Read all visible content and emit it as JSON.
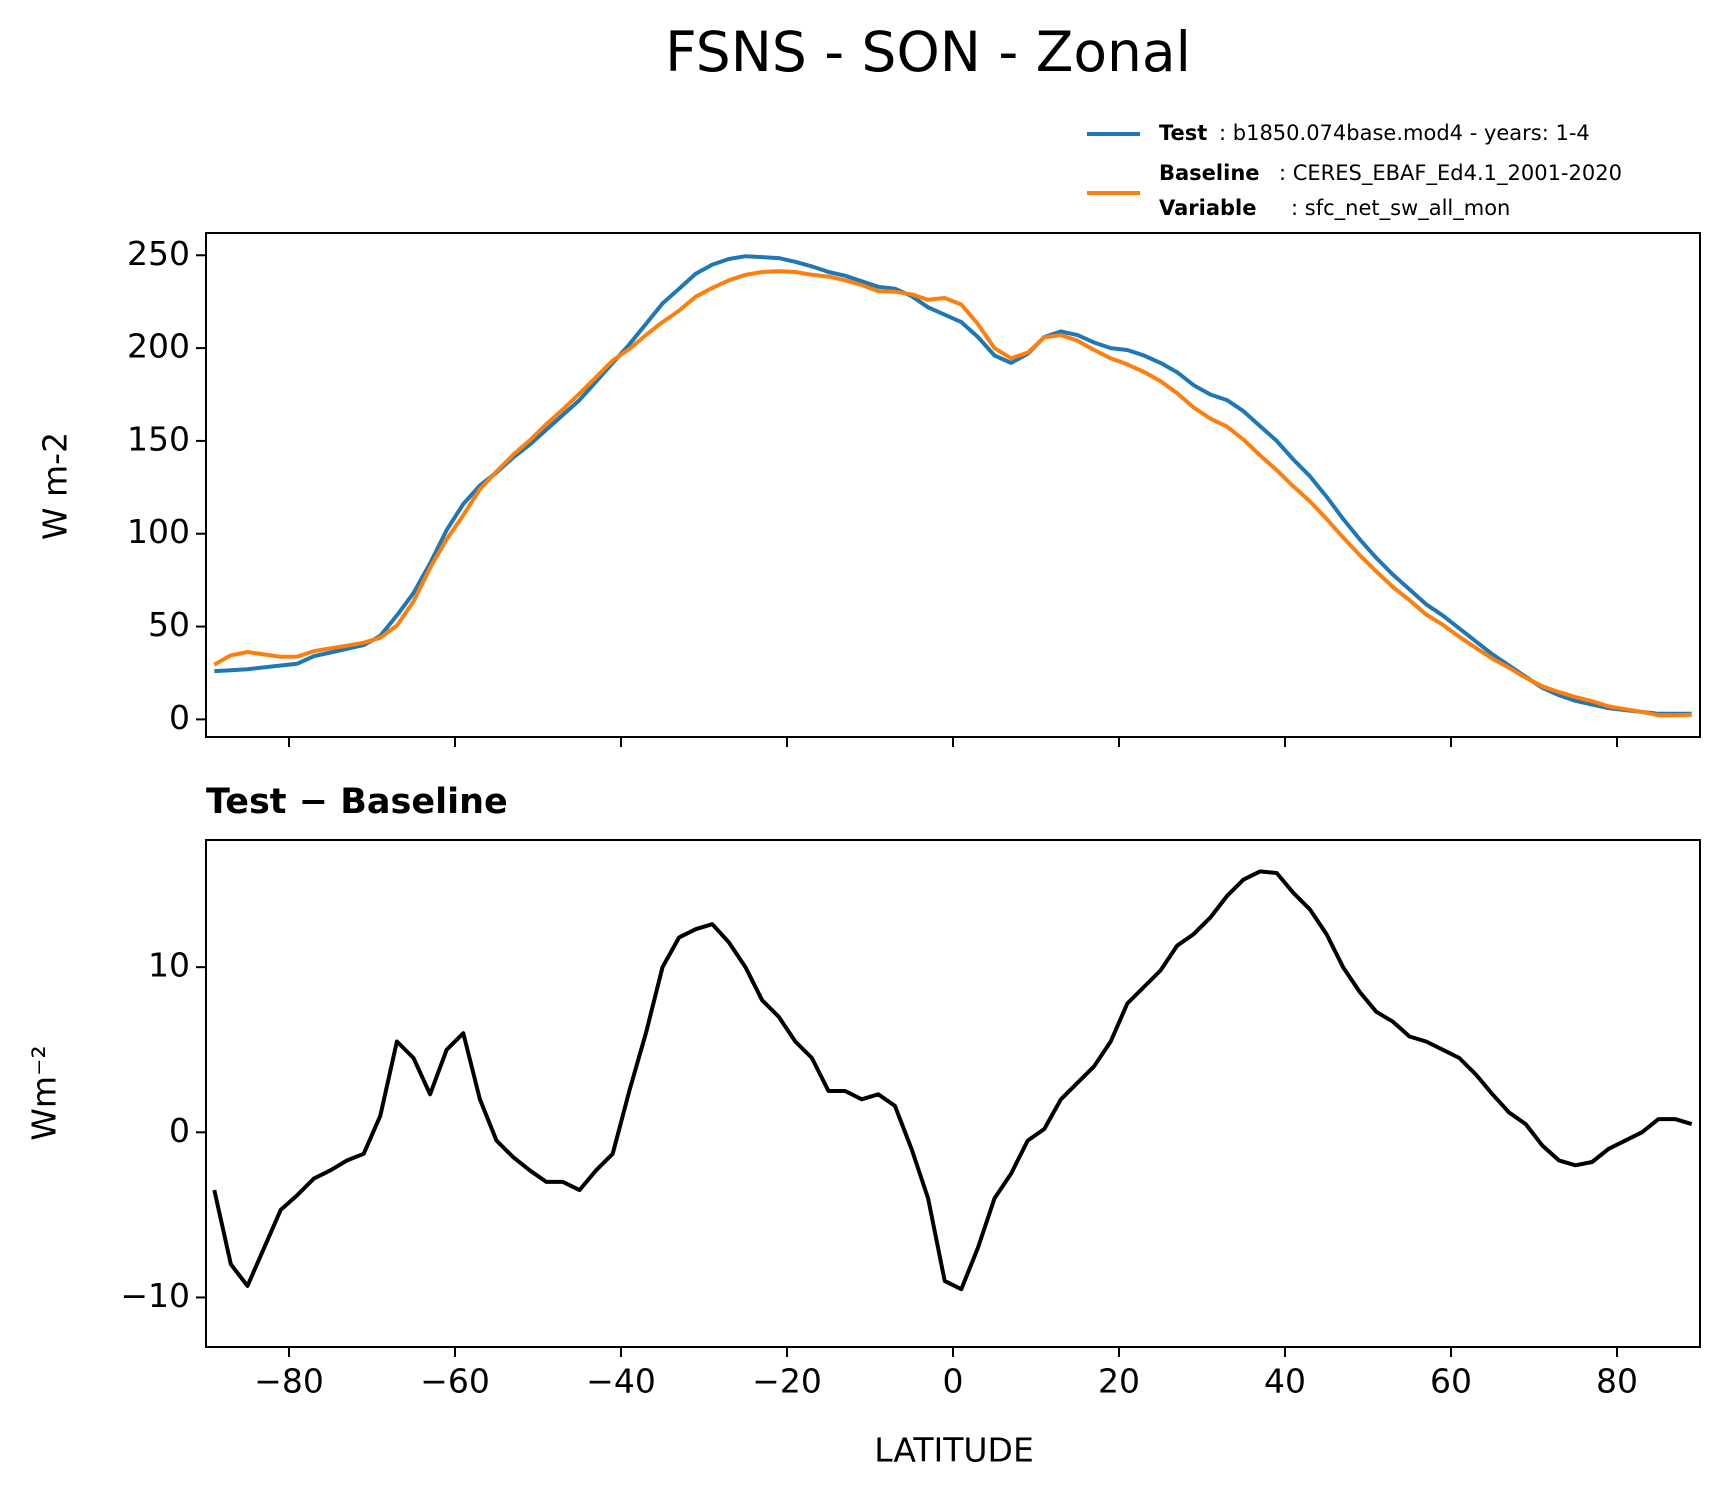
{
  "chart_data": [
    {
      "type": "line",
      "title": "FSNS - SON - Zonal",
      "ylabel": "W m-2",
      "x": [
        -89,
        -87,
        -85,
        -83,
        -81,
        -79,
        -77,
        -75,
        -73,
        -71,
        -69,
        -67,
        -65,
        -63,
        -61,
        -59,
        -57,
        -55,
        -53,
        -51,
        -49,
        -47,
        -45,
        -43,
        -41,
        -39,
        -37,
        -35,
        -33,
        -31,
        -29,
        -27,
        -25,
        -23,
        -21,
        -19,
        -17,
        -15,
        -13,
        -11,
        -9,
        -7,
        -5,
        -3,
        -1,
        1,
        3,
        5,
        7,
        9,
        11,
        13,
        15,
        17,
        19,
        21,
        23,
        25,
        27,
        29,
        31,
        33,
        35,
        37,
        39,
        41,
        43,
        45,
        47,
        49,
        51,
        53,
        55,
        57,
        59,
        61,
        63,
        65,
        67,
        69,
        71,
        73,
        75,
        77,
        79,
        81,
        83,
        85,
        87,
        89
      ],
      "series": [
        {
          "name": "Test",
          "description": ": b1850.074base.mod4 - years: 1-4",
          "color": "#1f77b4",
          "values": [
            26,
            26.5,
            27,
            28,
            29,
            30,
            34,
            36,
            38,
            40,
            45,
            56,
            68,
            84,
            102,
            116,
            126,
            133,
            141,
            148,
            156,
            164,
            172,
            182,
            192,
            202,
            213,
            224,
            232,
            240,
            245,
            248,
            249.5,
            249,
            248.5,
            246.5,
            244,
            241,
            239,
            236,
            233,
            232,
            228,
            222,
            218,
            214,
            206,
            196,
            192,
            197,
            206,
            209,
            207,
            203,
            200,
            199,
            196,
            192,
            187,
            180,
            175,
            172,
            166,
            158,
            150,
            140,
            131,
            120,
            108,
            97,
            87,
            78,
            70,
            62,
            56,
            49,
            42,
            35,
            29,
            23,
            17,
            13,
            10,
            8,
            6,
            5,
            4,
            3,
            3,
            3
          ]
        },
        {
          "name": "Baseline",
          "description": ": CERES_EBAF_Ed4.1_2001-2020",
          "color": "#ff7f0e",
          "values": [
            29.5,
            34.5,
            36.3,
            35,
            33.7,
            33.8,
            36.8,
            38.3,
            39.7,
            41.3,
            44,
            50.5,
            63.5,
            81.7,
            97,
            110,
            124,
            133.5,
            142.5,
            150.3,
            159,
            167,
            175.5,
            184.3,
            193.3,
            199.5,
            207,
            214,
            220.2,
            227.7,
            232.4,
            236.5,
            239.5,
            241,
            241.5,
            241,
            239.5,
            238.5,
            236.5,
            234,
            230.7,
            230.4,
            229,
            226,
            227,
            223.5,
            213,
            200,
            194.5,
            197.5,
            205.8,
            207,
            204,
            199,
            194.5,
            191.2,
            187.2,
            182.2,
            175.7,
            168,
            162,
            157.7,
            150.7,
            142.2,
            134.3,
            125.5,
            117.5,
            108,
            98,
            88.5,
            79.7,
            71.3,
            64.2,
            56.5,
            51,
            44.5,
            38.5,
            32.7,
            27.8,
            22.5,
            17.8,
            14.7,
            12,
            9.8,
            7,
            5.5,
            4,
            2.2,
            2.2,
            2.5
          ]
        }
      ],
      "variable_label": "Variable",
      "variable": ": sfc_net_sw_all_mon",
      "xlim": [
        -90,
        90
      ],
      "ylim": [
        -9.5,
        262
      ],
      "xticks": [
        -80,
        -60,
        -40,
        -20,
        0,
        20,
        40,
        60,
        80
      ],
      "yticks": [
        0,
        50,
        100,
        150,
        200,
        250
      ]
    },
    {
      "type": "line",
      "subtitle": "Test − Baseline",
      "ylabel": "Wm⁻²",
      "xlabel": "LATITUDE",
      "x": [
        -89,
        -87,
        -85,
        -83,
        -81,
        -79,
        -77,
        -75,
        -73,
        -71,
        -69,
        -67,
        -65,
        -63,
        -61,
        -59,
        -57,
        -55,
        -53,
        -51,
        -49,
        -47,
        -45,
        -43,
        -41,
        -39,
        -37,
        -35,
        -33,
        -31,
        -29,
        -27,
        -25,
        -23,
        -21,
        -19,
        -17,
        -15,
        -13,
        -11,
        -9,
        -7,
        -5,
        -3,
        -1,
        1,
        3,
        5,
        7,
        9,
        11,
        13,
        15,
        17,
        19,
        21,
        23,
        25,
        27,
        29,
        31,
        33,
        35,
        37,
        39,
        41,
        43,
        45,
        47,
        49,
        51,
        53,
        55,
        57,
        59,
        61,
        63,
        65,
        67,
        69,
        71,
        73,
        75,
        77,
        79,
        81,
        83,
        85,
        87,
        89
      ],
      "series": [
        {
          "color": "#000000",
          "values": [
            -3.5,
            -8,
            -9.3,
            -7,
            -4.7,
            -3.8,
            -2.8,
            -2.3,
            -1.7,
            -1.3,
            1,
            5.5,
            4.5,
            2.3,
            5,
            6,
            2,
            -0.5,
            -1.5,
            -2.3,
            -3,
            -3,
            -3.5,
            -2.3,
            -1.3,
            2.5,
            6,
            10,
            11.8,
            12.3,
            12.6,
            11.5,
            10,
            8,
            7,
            5.5,
            4.5,
            2.5,
            2.5,
            2,
            2.3,
            1.6,
            -1,
            -4,
            -9,
            -9.5,
            -7,
            -4,
            -2.5,
            -0.5,
            0.2,
            2,
            3,
            4,
            5.5,
            7.8,
            8.8,
            9.8,
            11.3,
            12,
            13,
            14.3,
            15.3,
            15.8,
            15.7,
            14.5,
            13.5,
            12,
            10,
            8.5,
            7.3,
            6.7,
            5.8,
            5.5,
            5,
            4.5,
            3.5,
            2.3,
            1.2,
            0.5,
            -0.8,
            -1.7,
            -2,
            -1.8,
            -1,
            -0.5,
            0,
            0.8,
            0.8,
            0.5
          ]
        }
      ],
      "xlim": [
        -90,
        90
      ],
      "ylim": [
        -13,
        17.7
      ],
      "xticks": [
        {
          "value": -80,
          "label": "−80"
        },
        {
          "value": -60,
          "label": "−60"
        },
        {
          "value": -40,
          "label": "−40"
        },
        {
          "value": -20,
          "label": "−20"
        },
        0,
        20,
        40,
        60,
        80
      ],
      "yticks": [
        {
          "value": -10,
          "label": "−10"
        },
        0,
        10
      ]
    }
  ]
}
